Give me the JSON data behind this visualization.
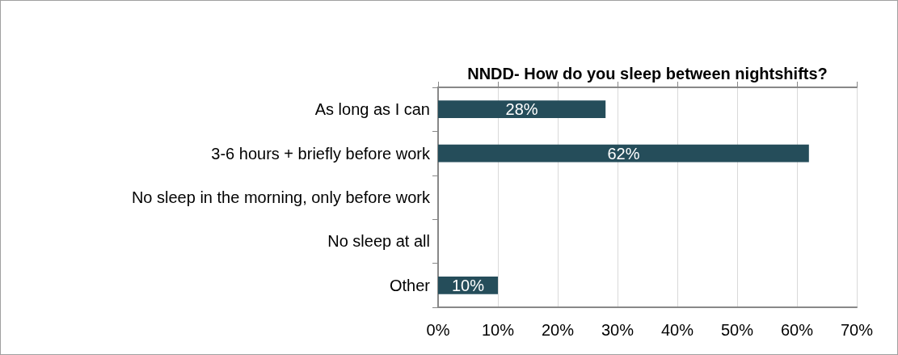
{
  "chart_data": {
    "type": "bar",
    "orientation": "horizontal",
    "title": "NNDD- How do you sleep between nightshifts?",
    "categories": [
      "As long as I can",
      "3-6 hours + briefly before work",
      "No sleep in the morning, only before work",
      "No sleep at all",
      "Other"
    ],
    "values": [
      28,
      62,
      0,
      0,
      10
    ],
    "color": "#254d5a",
    "value_labels": [
      "28%",
      "62%",
      null,
      null,
      "10%"
    ],
    "xlim": [
      0,
      70
    ],
    "xticks": [
      {
        "value": 0,
        "label": "0%"
      },
      {
        "value": 10,
        "label": "10%"
      },
      {
        "value": 20,
        "label": "20%"
      },
      {
        "value": 30,
        "label": "30%"
      },
      {
        "value": 40,
        "label": "40%"
      },
      {
        "value": 50,
        "label": "50%"
      },
      {
        "value": 60,
        "label": "60%"
      },
      {
        "value": 70,
        "label": "70%"
      }
    ],
    "grid": "x"
  }
}
